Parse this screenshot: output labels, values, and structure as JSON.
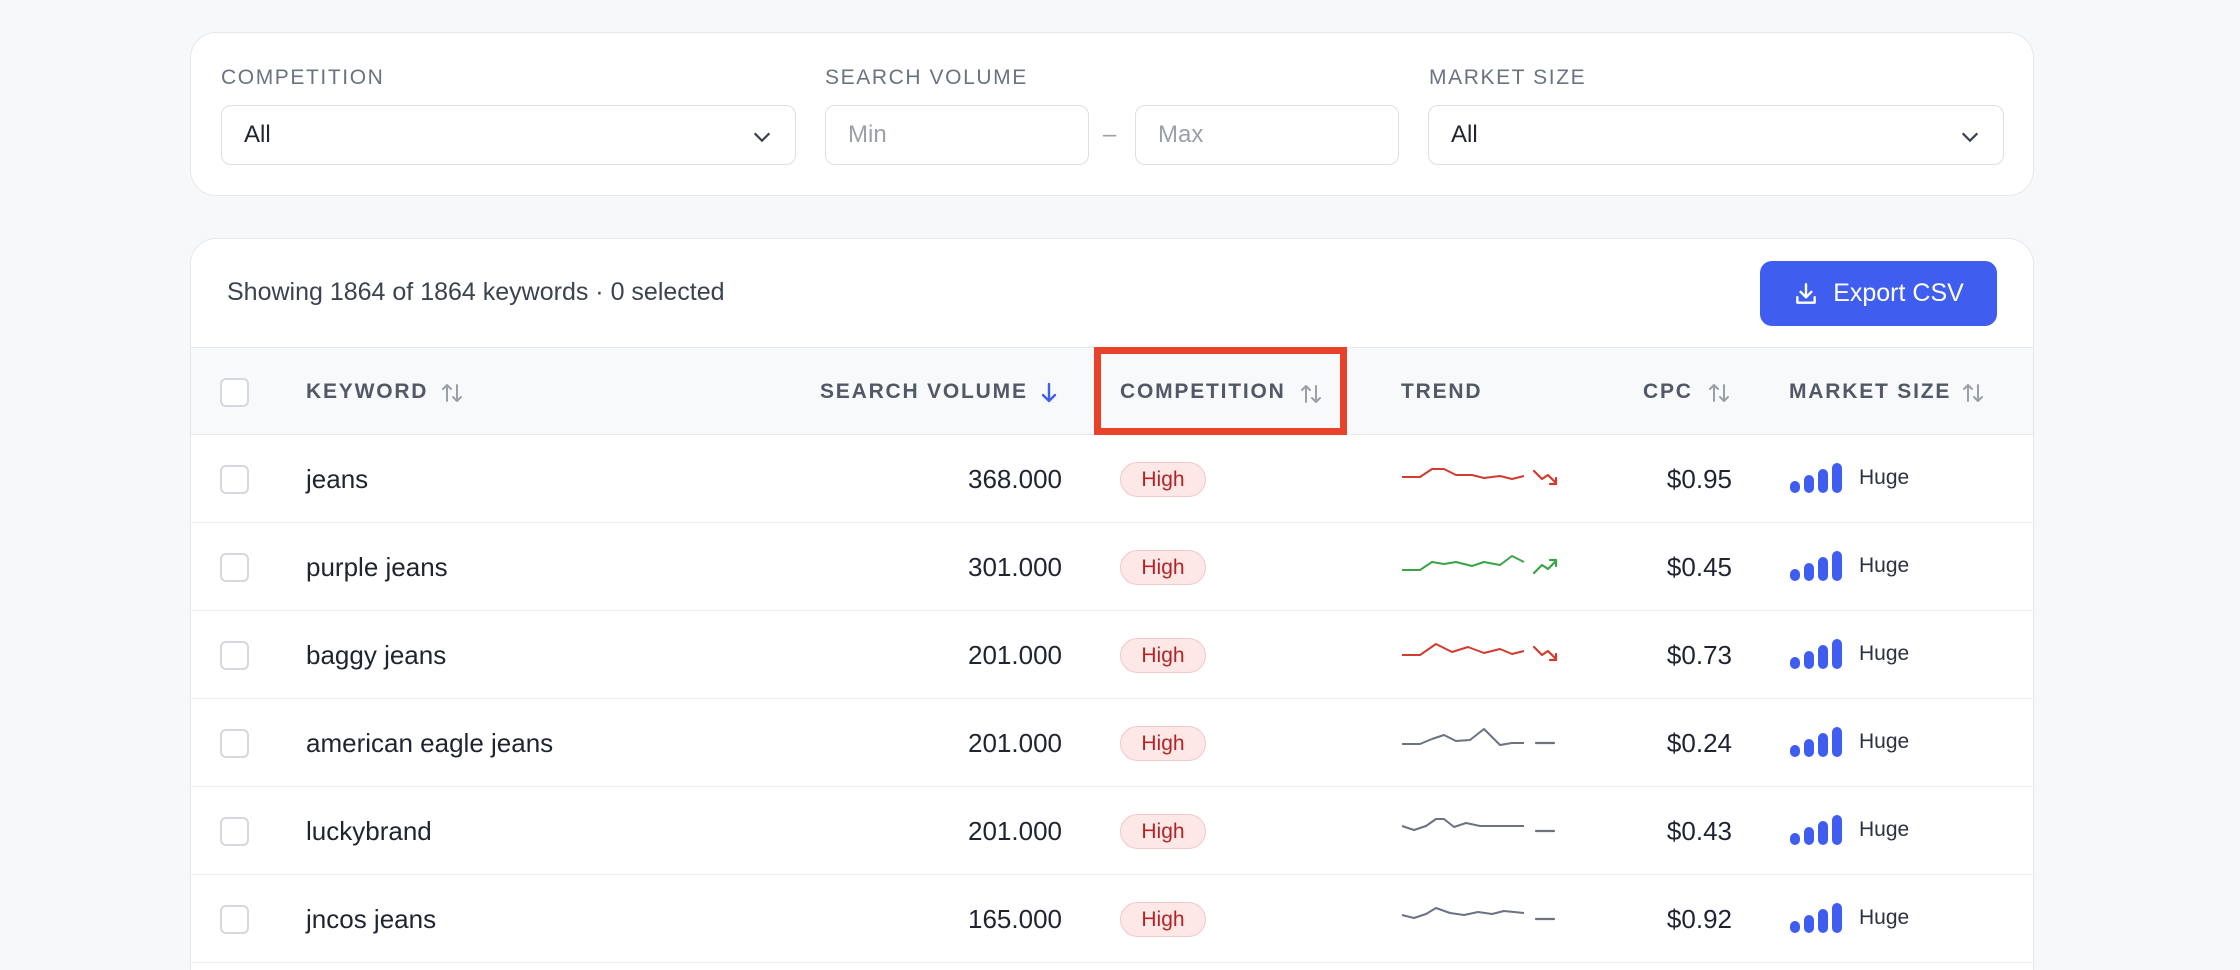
{
  "filters": {
    "competition": {
      "label": "COMPETITION",
      "value": "All"
    },
    "search_volume": {
      "label": "SEARCH VOLUME",
      "min_placeholder": "Min",
      "max_placeholder": "Max",
      "separator": "–"
    },
    "market_size": {
      "label": "MARKET SIZE",
      "value": "All"
    }
  },
  "table": {
    "summary": "Showing 1864 of 1864 keywords · 0 selected",
    "export_label": "Export CSV",
    "columns": {
      "keyword": "KEYWORD",
      "search_volume": "SEARCH VOLUME",
      "competition": "COMPETITION",
      "trend": "TREND",
      "cpc": "CPC",
      "market_size": "MARKET SIZE"
    },
    "rows": [
      {
        "keyword": "jeans",
        "volume": "368.000",
        "competition": "High",
        "trend": "down",
        "cpc": "$0.95",
        "market": "Huge"
      },
      {
        "keyword": "purple jeans",
        "volume": "301.000",
        "competition": "High",
        "trend": "up",
        "cpc": "$0.45",
        "market": "Huge"
      },
      {
        "keyword": "baggy jeans",
        "volume": "201.000",
        "competition": "High",
        "trend": "down",
        "cpc": "$0.73",
        "market": "Huge"
      },
      {
        "keyword": "american eagle jeans",
        "volume": "201.000",
        "competition": "High",
        "trend": "flat",
        "cpc": "$0.24",
        "market": "Huge"
      },
      {
        "keyword": "luckybrand",
        "volume": "201.000",
        "competition": "High",
        "trend": "flat",
        "cpc": "$0.43",
        "market": "Huge"
      },
      {
        "keyword": "jncos jeans",
        "volume": "165.000",
        "competition": "High",
        "trend": "flat",
        "cpc": "$0.92",
        "market": "Huge"
      }
    ]
  },
  "colors": {
    "accent": "#3f5ef0",
    "highlight": "#e8432a",
    "trend_down": "#d23b2f",
    "trend_up": "#3ba348",
    "trend_flat": "#6b7280"
  }
}
